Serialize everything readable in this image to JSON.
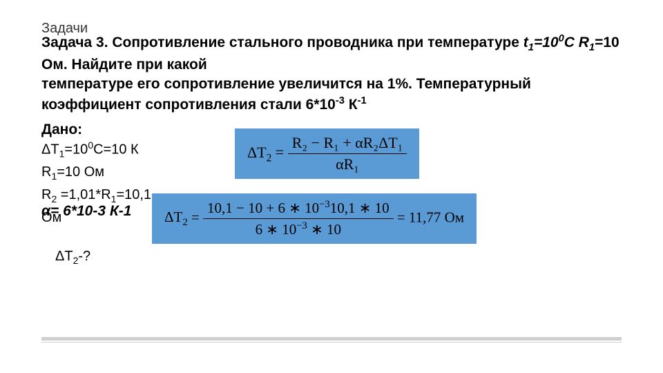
{
  "preheading": "Задачи",
  "problem": {
    "label": "Задача 3.",
    "line1_a": " Сопротивление стального проводника при температуре ",
    "t1var": "t",
    "t1sub": "1",
    "t1eq": "=10",
    "t1supC": "0",
    "t1C": "С ",
    "r1var": "R",
    "r1sub": "1",
    "r1eq": "=10 Ом. Найдите при какой",
    "line2": "температуре его сопротивление увеличится на 1%. Температурный коэффициент сопротивления стали 6*10",
    "coef_sup": "-3",
    "coef_tail": " К",
    "coef_sup2": "-1"
  },
  "given": {
    "label": "Дано:",
    "l1_a": "ΔT",
    "l1_sub": "1",
    "l1_b": "=10",
    "l1_sup": "0",
    "l1_c": "С=10 К",
    "l2_a": "R",
    "l2_sub": "1",
    "l2_b": "=10 Ом",
    "l3_a": "R",
    "l3_sub": "2",
    "l3_b": " =1,01*R",
    "l3_sub2": "1",
    "l3_c": "=10,1",
    "overlap": "α= 6*10",
    "overlap_sup": "-3",
    "overlap_tail": " К",
    "overlap_sup2": "-1",
    "l4": "Ом",
    "find_a": "ΔT",
    "find_sub": "2",
    "find_b": "-?"
  },
  "formula1": {
    "lhs_a": "ΔT",
    "lhs_sub": "2",
    "eq": " = ",
    "num": "R₂ − R₁ + αR₂ΔT₁",
    "den": "αR₁"
  },
  "formula2": {
    "lhs_a": "ΔT",
    "lhs_sub": "2",
    "eq": " = ",
    "num_a": "10,1 − 10 + 6 ∗ 10",
    "num_sup": "−3",
    "num_b": "10,1 ∗ 10",
    "den_a": "6 ∗ 10",
    "den_sup": "−3",
    "den_b": " ∗ 10",
    "rhs": " = 11,77 Ом"
  },
  "colors": {
    "box_bg": "#5b9bd5",
    "text": "#000000",
    "rule": "#cfcfcf"
  }
}
